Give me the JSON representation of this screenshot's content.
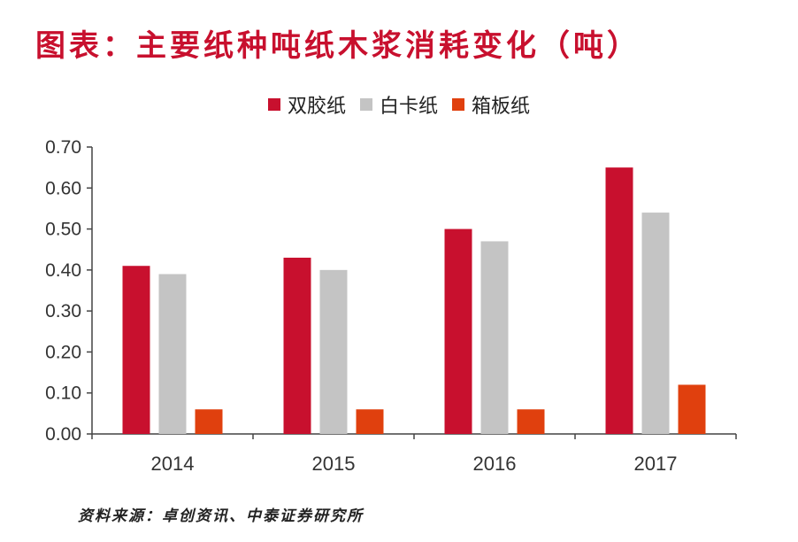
{
  "title": "图表：主要纸种吨纸木浆消耗变化（吨）",
  "source": "资料来源：卓创资讯、中泰证券研究所",
  "colors": {
    "axis": "#444444",
    "tick_text": "#333333"
  },
  "chart_data": {
    "type": "bar",
    "title": "",
    "xlabel": "",
    "ylabel": "",
    "categories": [
      "2014",
      "2015",
      "2016",
      "2017"
    ],
    "series": [
      {
        "name": "双胶纸",
        "color": "#c8102e",
        "values": [
          0.41,
          0.43,
          0.5,
          0.65
        ]
      },
      {
        "name": "白卡纸",
        "color": "#c4c4c4",
        "values": [
          0.39,
          0.4,
          0.47,
          0.54
        ]
      },
      {
        "name": "箱板纸",
        "color": "#e0400e",
        "values": [
          0.06,
          0.06,
          0.06,
          0.12
        ]
      }
    ],
    "ylim": [
      0,
      0.7
    ],
    "yticks": [
      "0.00",
      "0.10",
      "0.20",
      "0.30",
      "0.40",
      "0.50",
      "0.60",
      "0.70"
    ],
    "grid": false,
    "legend_position": "top-center"
  }
}
